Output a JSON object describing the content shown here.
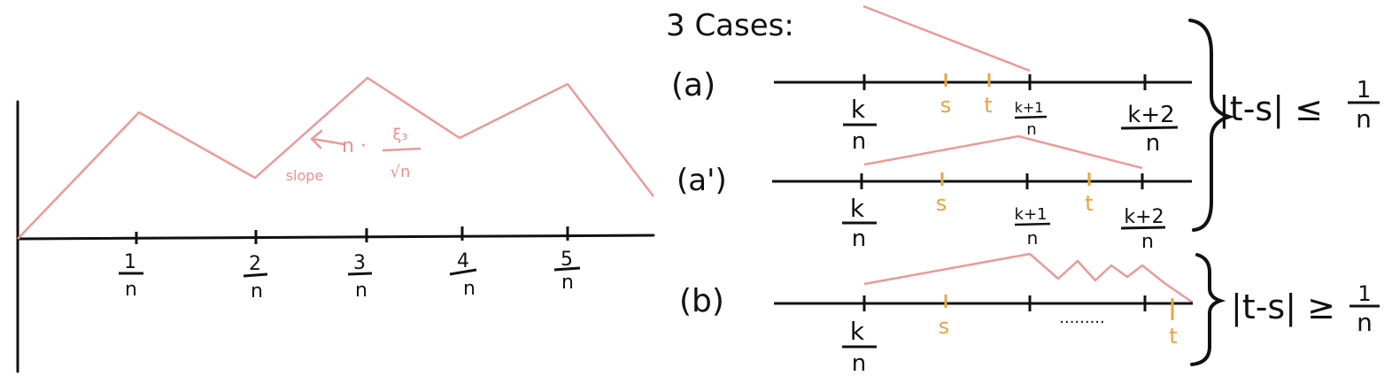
{
  "colors": {
    "ink": "#111111",
    "pink": "#eb9a98",
    "orange": "#e9a43c"
  },
  "left_plot": {
    "tick_labels": [
      {
        "num": "1",
        "den": "n"
      },
      {
        "num": "2",
        "den": "n"
      },
      {
        "num": "3",
        "den": "n"
      },
      {
        "num": "4",
        "den": "n"
      },
      {
        "num": "5",
        "den": "n"
      }
    ],
    "slope_annotation": {
      "prefix": "n ·",
      "num": "ξ₃",
      "den": "√n",
      "word": "slope"
    }
  },
  "right_panel": {
    "heading": "3 Cases:",
    "case_a": {
      "label": "(a)",
      "tick_labels": [
        {
          "num": "k",
          "den": "n"
        },
        {
          "num": "k+1",
          "den": "n"
        },
        {
          "num": "k+2",
          "den": "n"
        }
      ],
      "s": "s",
      "t": "t"
    },
    "case_a_prime": {
      "label": "(a')",
      "tick_labels": [
        {
          "num": "k",
          "den": "n"
        },
        {
          "num": "k+1",
          "den": "n"
        },
        {
          "num": "k+2",
          "den": "n"
        }
      ],
      "s": "s",
      "t": "t"
    },
    "condition_a": {
      "lhs": "|t-s| ≤",
      "num": "1",
      "den": "n"
    },
    "case_b": {
      "label": "(b)",
      "tick_labels": [
        {
          "num": "k",
          "den": "n"
        }
      ],
      "s": "s",
      "t": "t",
      "dots": "·········"
    },
    "condition_b": {
      "lhs": "|t-s| ≥",
      "num": "1",
      "den": "n"
    }
  }
}
